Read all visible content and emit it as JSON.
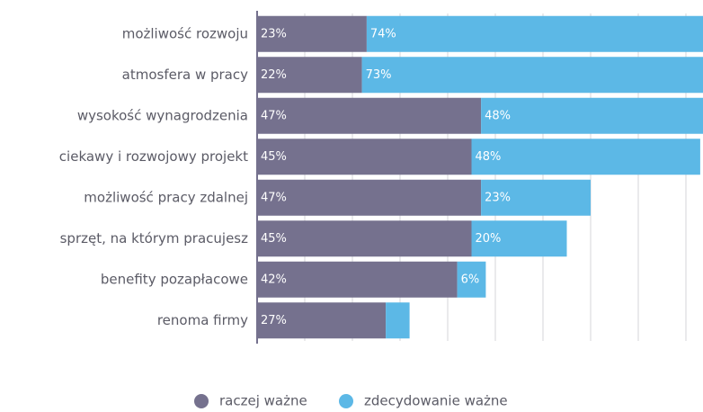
{
  "chart_data": {
    "type": "stacked-barh",
    "categories": [
      "możliwość rozwoju",
      "atmosfera w pracy",
      "wysokość wynagrodzenia",
      "ciekawy i rozwojowy projekt",
      "możliwość pracy zdalnej",
      "sprzęt, na którym pracujesz",
      "benefity pozapłacowe",
      "renoma firmy"
    ],
    "series": [
      {
        "name": "raczej ważne",
        "color": "#75718e",
        "values": [
          23,
          22,
          47,
          45,
          47,
          45,
          42,
          27
        ],
        "value_labels": [
          "23%",
          "22%",
          "47%",
          "45%",
          "47%",
          "45%",
          "42%",
          "27%"
        ]
      },
      {
        "name": "zdecydowanie ważne",
        "color": "#5cb8e6",
        "values": [
          74,
          73,
          48,
          48,
          23,
          20,
          6,
          5
        ],
        "value_labels": [
          "74%",
          "73%",
          "48%",
          "48%",
          "23%",
          "20%",
          "6%",
          null
        ]
      }
    ],
    "xlim": [
      0,
      100
    ],
    "xticks": [
      10,
      20,
      30,
      40,
      50,
      60,
      70,
      80,
      90
    ],
    "grid": true,
    "legend": "bottom"
  }
}
